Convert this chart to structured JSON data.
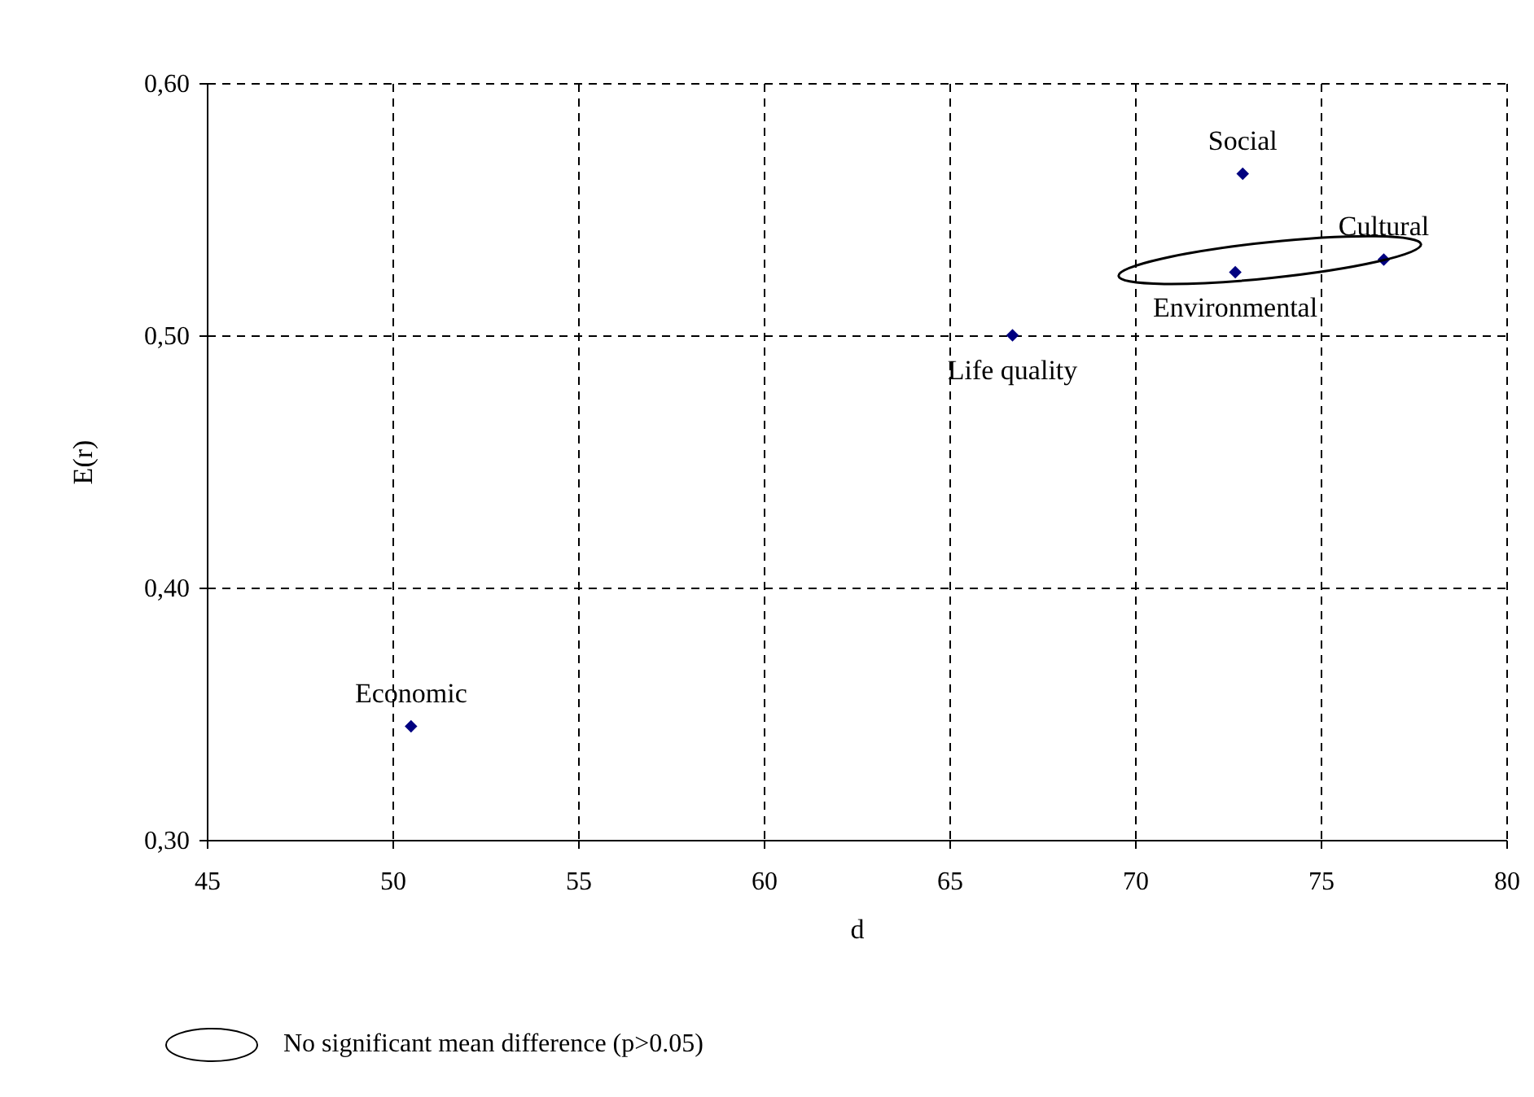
{
  "chart_data": {
    "type": "scatter",
    "xlabel": "d",
    "ylabel": "E(r)",
    "x": [
      50.5,
      66.7,
      72.9,
      72.7,
      76.7
    ],
    "series": [
      {
        "color": "#000080",
        "values": [
          0.345,
          0.5,
          0.564,
          0.525,
          0.53
        ]
      }
    ],
    "marker": "diamond",
    "grid": true,
    "xlim": [
      45,
      80
    ],
    "xticks": [
      45,
      50,
      55,
      60,
      65,
      70,
      75,
      80
    ],
    "ylim": [
      0.3,
      0.6
    ],
    "yticks": [
      {
        "value": 0.3,
        "label": "0,30"
      },
      {
        "value": 0.4,
        "label": "0,40"
      },
      {
        "value": 0.5,
        "label": "0,50"
      },
      {
        "value": 0.6,
        "label": "0,60"
      }
    ],
    "annotations": [
      {
        "text": "Economic",
        "x": 50.5,
        "y": 0.345
      },
      {
        "text": "Life quality",
        "x": 66.7,
        "y": 0.5
      },
      {
        "text": "Social",
        "x": 72.9,
        "y": 0.564
      },
      {
        "text": "Environmental",
        "x": 72.7,
        "y": 0.525
      },
      {
        "text": "Cultural",
        "x": 76.7,
        "y": 0.53
      },
      "No significant mean difference (p>0.05)"
    ]
  }
}
